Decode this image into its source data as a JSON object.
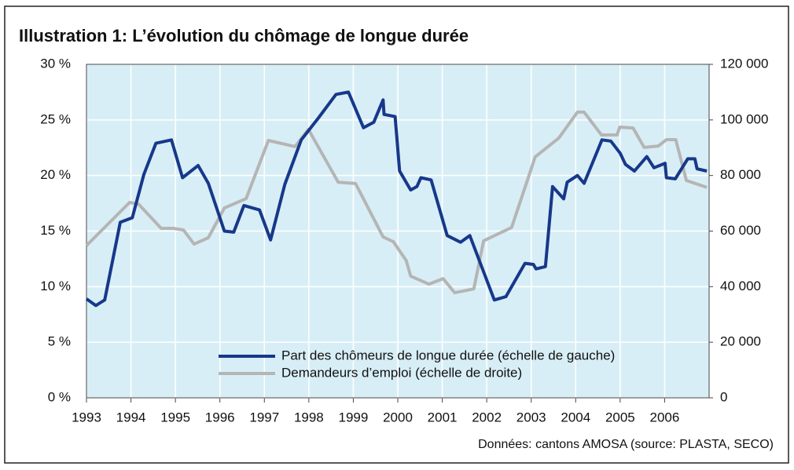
{
  "chart_data": {
    "type": "line",
    "title": "Illustration 1: L’évolution du chômage de longue durée",
    "source": "Données: cantons AMOSA (source: PLASTA, SECO)",
    "xlim": [
      1993,
      2007
    ],
    "xticks": [
      1993,
      1994,
      1995,
      1996,
      1997,
      1998,
      1999,
      2000,
      2001,
      2002,
      2003,
      2004,
      2005,
      2006
    ],
    "ylim": [
      0,
      30
    ],
    "yticks": [
      {
        "value": 0,
        "label": "0 %"
      },
      {
        "value": 5,
        "label": "5 %"
      },
      {
        "value": 10,
        "label": "10 %"
      },
      {
        "value": 15,
        "label": "15 %"
      },
      {
        "value": 20,
        "label": "20 %"
      },
      {
        "value": 25,
        "label": "25 %"
      },
      {
        "value": 30,
        "label": "30 %"
      }
    ],
    "y2lim": [
      0,
      120000
    ],
    "y2ticks": [
      0,
      {
        "value": 20000,
        "label": "20 000"
      },
      {
        "value": 40000,
        "label": "40 000"
      },
      {
        "value": 60000,
        "label": "60 000"
      },
      {
        "value": 80000,
        "label": "80 000"
      },
      {
        "value": 100000,
        "label": "100 000"
      },
      {
        "value": 120000,
        "label": "120 000"
      }
    ],
    "grid": true,
    "series": [
      {
        "name": "Part des chômeurs de longue durée (échelle de gauche)",
        "color": "#17388a",
        "axis": "y",
        "x": [
          1993.0,
          1993.21,
          1993.41,
          1993.76,
          1994.03,
          1994.29,
          1994.56,
          1994.91,
          1995.16,
          1995.51,
          1995.74,
          1996.1,
          1996.31,
          1996.54,
          1996.89,
          1997.14,
          1997.46,
          1997.83,
          1998.22,
          1998.61,
          1998.89,
          1999.23,
          1999.46,
          1999.67,
          1999.69,
          1999.94,
          2000.04,
          2000.29,
          2000.43,
          2000.52,
          2000.75,
          2001.11,
          2001.41,
          2001.62,
          2002.17,
          2002.43,
          2002.86,
          2003.05,
          2003.11,
          2003.32,
          2003.48,
          2003.73,
          2003.81,
          2004.04,
          2004.19,
          2004.59,
          2004.79,
          2005.0,
          2005.12,
          2005.32,
          2005.6,
          2005.76,
          2006.01,
          2006.04,
          2006.24,
          2006.52,
          2006.68,
          2006.73,
          2006.95
        ],
        "values": [
          8.9,
          8.3,
          8.8,
          15.8,
          16.2,
          20.1,
          22.9,
          23.2,
          19.8,
          20.9,
          19.3,
          15.0,
          14.9,
          17.3,
          16.9,
          14.2,
          19.2,
          23.2,
          25.2,
          27.3,
          27.5,
          24.3,
          24.8,
          26.8,
          25.5,
          25.3,
          20.4,
          18.7,
          19.0,
          19.8,
          19.6,
          14.6,
          14.0,
          14.6,
          8.8,
          9.1,
          12.1,
          12.0,
          11.6,
          11.8,
          19.0,
          17.9,
          19.4,
          20.0,
          19.3,
          23.2,
          23.1,
          22.0,
          21.0,
          20.4,
          21.7,
          20.7,
          21.1,
          19.8,
          19.7,
          21.5,
          21.5,
          20.6,
          20.4
        ]
      },
      {
        "name": "Demandeurs d’emploi (échelle de droite)",
        "color": "#b5b5b5",
        "axis": "y2",
        "x": [
          1993.0,
          1993.97,
          1994.17,
          1994.68,
          1994.95,
          1995.18,
          1995.42,
          1995.74,
          1996.1,
          1996.59,
          1997.09,
          1997.69,
          1997.99,
          1998.66,
          1999.05,
          1999.67,
          1999.9,
          2000.19,
          2000.29,
          2000.7,
          2001.02,
          2001.28,
          2001.71,
          2001.93,
          2002.56,
          2003.09,
          2003.62,
          2004.04,
          2004.19,
          2004.58,
          2004.93,
          2004.99,
          2005.29,
          2005.54,
          2005.86,
          2006.04,
          2006.25,
          2006.49,
          2006.95
        ],
        "values": [
          54800,
          70300,
          69700,
          61000,
          61000,
          60400,
          55300,
          57600,
          68300,
          71700,
          92600,
          90400,
          96600,
          77600,
          77100,
          57900,
          56200,
          49400,
          43800,
          40900,
          42900,
          37800,
          39200,
          56500,
          61300,
          86700,
          93500,
          102800,
          102800,
          94600,
          94600,
          97400,
          97100,
          90100,
          90600,
          92900,
          92900,
          78200,
          75700
        ]
      }
    ]
  }
}
